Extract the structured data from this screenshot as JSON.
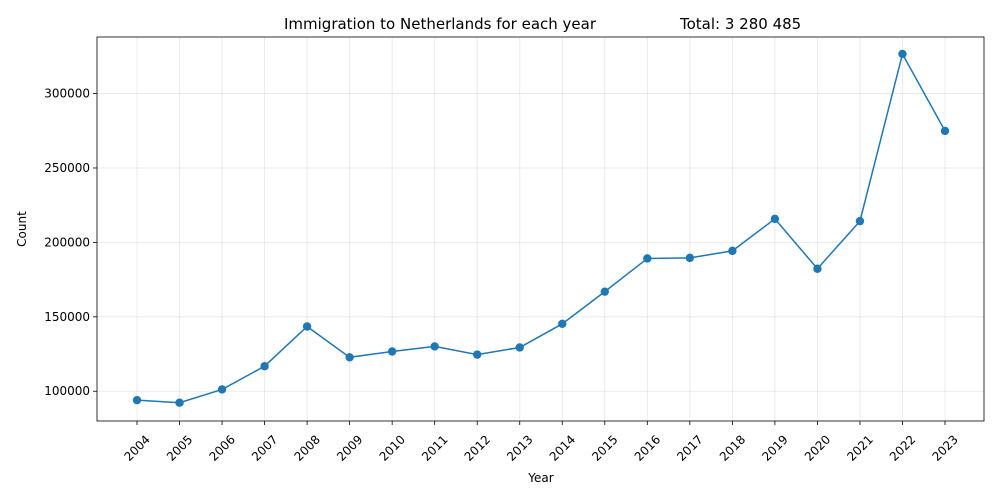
{
  "chart_data": {
    "type": "line",
    "title": "Immigration to Netherlands for each year",
    "total_label": "Total: 3 280 485",
    "xlabel": "Year",
    "ylabel": "Count",
    "categories": [
      "2004",
      "2005",
      "2006",
      "2007",
      "2008",
      "2009",
      "2010",
      "2011",
      "2012",
      "2013",
      "2014",
      "2015",
      "2016",
      "2017",
      "2018",
      "2019",
      "2020",
      "2021",
      "2022",
      "2023"
    ],
    "values": [
      94000,
      92300,
      101200,
      116800,
      143500,
      122800,
      126700,
      130100,
      124600,
      129400,
      145300,
      166900,
      189200,
      189600,
      194300,
      215800,
      182300,
      214300,
      326600,
      274900
    ],
    "y_ticks": [
      100000,
      150000,
      200000,
      250000,
      300000
    ],
    "ylim": [
      80000,
      338000
    ],
    "grid": true,
    "line_color": "#1f77b4",
    "marker": "circle"
  }
}
